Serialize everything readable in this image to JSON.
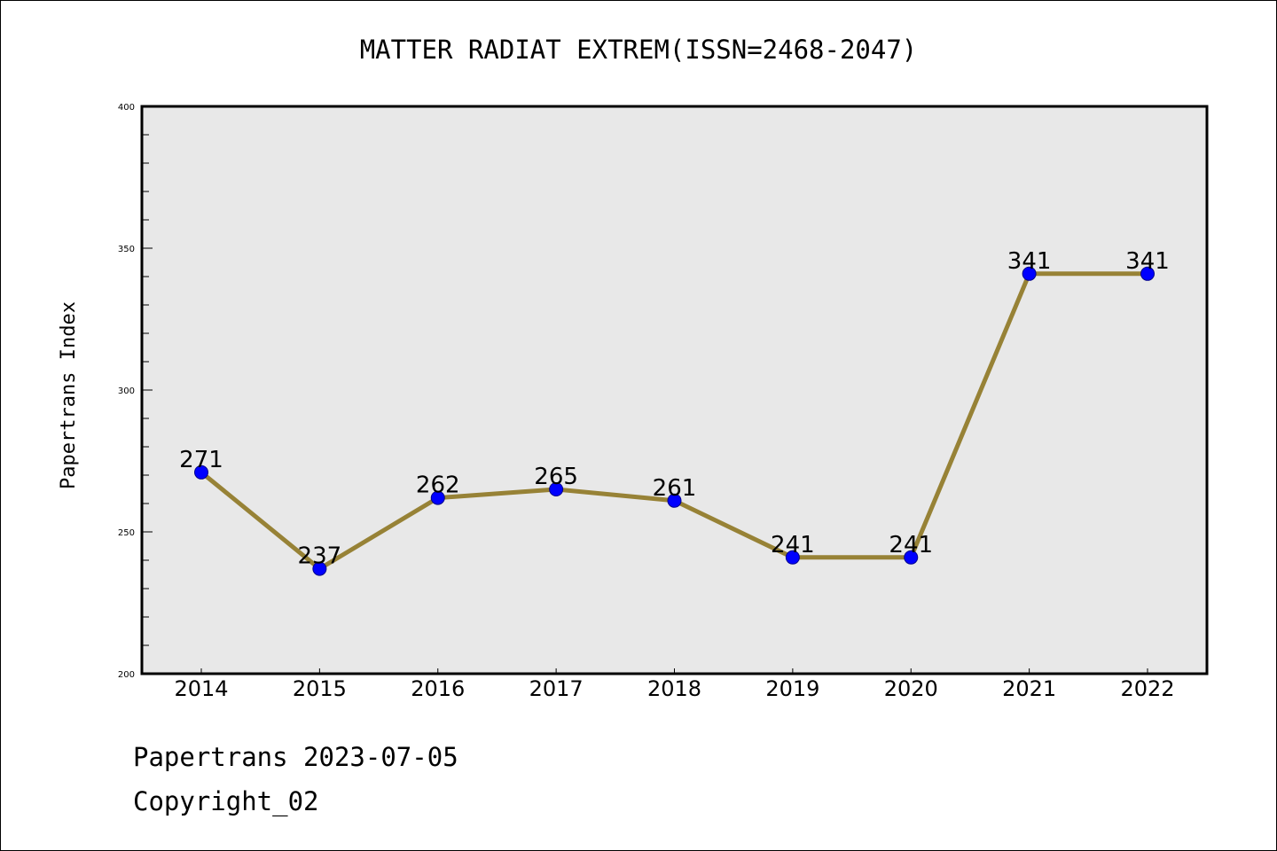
{
  "chart_data": {
    "type": "line",
    "title": "MATTER RADIAT EXTREM(ISSN=2468-2047)",
    "xlabel": "",
    "ylabel": "Papertrans Index",
    "categories": [
      "2014",
      "2015",
      "2016",
      "2017",
      "2018",
      "2019",
      "2020",
      "2021",
      "2022"
    ],
    "series": [
      {
        "name": "Papertrans Index",
        "values": [
          271,
          237,
          262,
          265,
          261,
          241,
          241,
          341,
          341
        ],
        "line_color": "#978236",
        "marker_color": "#0000ff"
      }
    ],
    "data_labels": [
      "271",
      "237",
      "262",
      "265",
      "261",
      "241",
      "241",
      "341",
      "341"
    ],
    "ylim": [
      200,
      400
    ],
    "yticks": [
      "200",
      "250",
      "300",
      "350",
      "400"
    ],
    "y_minor_step": 10,
    "grid": false,
    "legend": "none",
    "plot_background": "#e8e8e8"
  },
  "footer": {
    "line1": "Papertrans 2023-07-05",
    "line2": "Copyright_02"
  }
}
